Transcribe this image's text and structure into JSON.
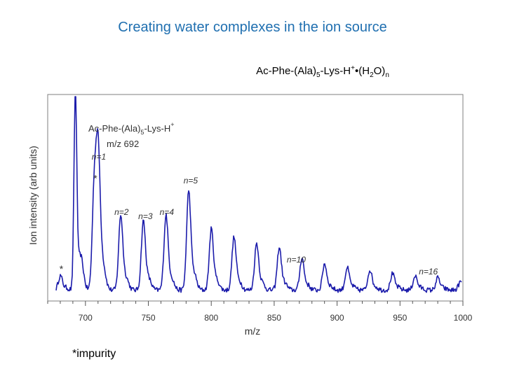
{
  "slide": {
    "title": "Creating water complexes in the ion source",
    "subtitle_parts": {
      "p1": "Ac-Phe-(Ala)",
      "s1": "5",
      "p2": "-Lys-H",
      "s2": "+",
      "p3": "•(H",
      "s3": "2",
      "p4": "O)",
      "s4": "n"
    },
    "footnote": "*impurity"
  },
  "chart_data": {
    "type": "line",
    "xlabel": "m/z",
    "ylabel": "Ion intensity (arb units)",
    "xlim": [
      670,
      1000
    ],
    "ylim": [
      0,
      1
    ],
    "x_ticks": [
      700,
      750,
      800,
      850,
      900,
      950,
      1000
    ],
    "grid": false,
    "legend": "none",
    "line_color": "#1c1cab",
    "parent_label": {
      "line1_a": "Ac-Phe-(Ala)",
      "line1_sub": "5",
      "line1_b": "-Lys-H",
      "line1_sup": "+",
      "line2": "m/z 692"
    },
    "series": [
      {
        "peaks": [
          {
            "x": 680,
            "y": 0.07
          },
          {
            "x": 692,
            "y": 1.0
          },
          {
            "x": 707,
            "y": 0.5
          },
          {
            "x": 710,
            "y": 0.61
          },
          {
            "x": 728,
            "y": 0.37
          },
          {
            "x": 746,
            "y": 0.34
          },
          {
            "x": 764,
            "y": 0.37
          },
          {
            "x": 782,
            "y": 0.49
          },
          {
            "x": 800,
            "y": 0.3
          },
          {
            "x": 818,
            "y": 0.26
          },
          {
            "x": 836,
            "y": 0.23
          },
          {
            "x": 854,
            "y": 0.21
          },
          {
            "x": 872,
            "y": 0.16
          },
          {
            "x": 890,
            "y": 0.13
          },
          {
            "x": 908,
            "y": 0.11
          },
          {
            "x": 926,
            "y": 0.1
          },
          {
            "x": 944,
            "y": 0.08
          },
          {
            "x": 962,
            "y": 0.07
          },
          {
            "x": 980,
            "y": 0.06
          },
          {
            "x": 998,
            "y": 0.04
          }
        ]
      }
    ],
    "annotations": [
      {
        "text": "n=1",
        "x": 705,
        "y": 0.68
      },
      {
        "text": "*",
        "x": 706,
        "y": 0.57
      },
      {
        "text": "n=2",
        "x": 723,
        "y": 0.4
      },
      {
        "text": "n=3",
        "x": 742,
        "y": 0.38
      },
      {
        "text": "n=4",
        "x": 759,
        "y": 0.4
      },
      {
        "text": "n=5",
        "x": 778,
        "y": 0.56
      },
      {
        "text": "n=10",
        "x": 860,
        "y": 0.16
      },
      {
        "text": "n=16",
        "x": 965,
        "y": 0.1
      },
      {
        "text": "*",
        "x": 679,
        "y": 0.11
      }
    ]
  }
}
